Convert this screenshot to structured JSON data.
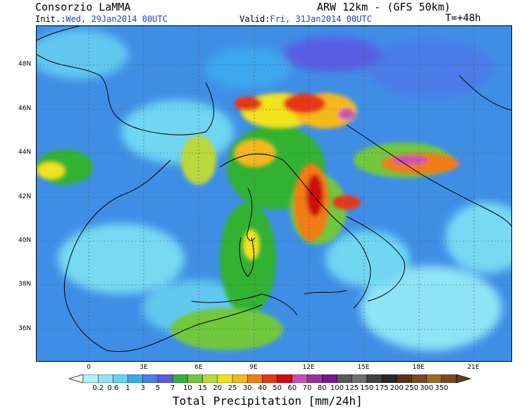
{
  "header": {
    "organization": "Consorzio LaMMA",
    "model": "ARW 12km - (GFS 50km)",
    "init_label": "Init.:",
    "init_value": "Wed, 29Jan2014 00UTC",
    "valid_label": "Valid:",
    "valid_value": "Fri, 31Jan2014 00UTC",
    "lead_time": "T=+48h"
  },
  "map": {
    "lat_labels": [
      "48N",
      "46N",
      "44N",
      "42N",
      "40N",
      "38N",
      "36N"
    ],
    "lon_labels": [
      "0",
      "3E",
      "6E",
      "9E",
      "12E",
      "15E",
      "18E",
      "21E"
    ]
  },
  "colorbar": {
    "title": "Total Precipitation [mm/24h]",
    "levels": [
      "0.2",
      "0.6",
      "1",
      "3",
      "5",
      "7",
      "10",
      "15",
      "20",
      "25",
      "30",
      "40",
      "50",
      "60",
      "70",
      "80",
      "100",
      "125",
      "150",
      "175",
      "200",
      "250",
      "300",
      "350"
    ],
    "colors": [
      "#a6f7f9",
      "#8fe3f5",
      "#64d2f2",
      "#3ea8ef",
      "#4b7ce9",
      "#5a5be4",
      "#33b233",
      "#6fc83c",
      "#bcd83a",
      "#f2e31f",
      "#f4b81d",
      "#f27b14",
      "#e83612",
      "#cf0b0b",
      "#c84fb4",
      "#9c2fa0",
      "#7a148c",
      "#595959",
      "#707070",
      "#404040",
      "#282828",
      "#5a3218",
      "#7a4a20",
      "#9c6a2c",
      "#7a4a1a"
    ]
  }
}
